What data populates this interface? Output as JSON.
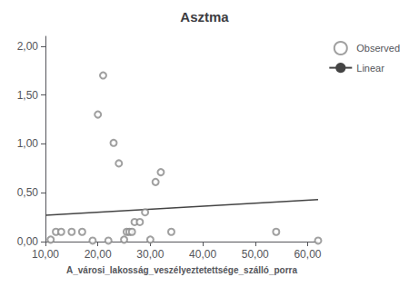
{
  "chart_data": {
    "type": "scatter",
    "title": "Asztma",
    "xlabel": "A_városi_lakosság_veszélyeztetettsége_szálló_porra",
    "xlim": [
      10,
      62
    ],
    "ylim": [
      0,
      2.1
    ],
    "xticks": [
      {
        "value": 10.0,
        "label": "10,00"
      },
      {
        "value": 20.0,
        "label": "20,00"
      },
      {
        "value": 30.0,
        "label": "30,00"
      },
      {
        "value": 40.0,
        "label": "40,00"
      },
      {
        "value": 50.0,
        "label": "50,00"
      },
      {
        "value": 60.0,
        "label": "60,00"
      }
    ],
    "yticks": [
      {
        "value": 0.0,
        "label": "0,00"
      },
      {
        "value": 0.5,
        "label": "0,50"
      },
      {
        "value": 1.0,
        "label": "1,00"
      },
      {
        "value": 1.5,
        "label": "1,50"
      },
      {
        "value": 2.0,
        "label": "2,00"
      }
    ],
    "grid": false,
    "legend": "right",
    "series": [
      {
        "name": "Observed",
        "type": "scatter",
        "marker": "emptyCircle",
        "color": "#888888",
        "x": [
          11,
          12,
          13,
          15,
          17,
          19,
          20,
          21,
          22,
          23,
          24,
          25,
          25.5,
          26,
          26.5,
          27,
          28,
          29,
          30,
          31,
          32,
          34,
          54,
          62
        ],
        "values": [
          0.02,
          0.1,
          0.1,
          0.1,
          0.1,
          0.01,
          1.3,
          1.7,
          0.01,
          1.01,
          0.8,
          0.02,
          0.1,
          0.1,
          0.1,
          0.2,
          0.2,
          0.3,
          0.02,
          0.61,
          0.71,
          0.1,
          0.1,
          0.01
        ]
      },
      {
        "name": "Linear",
        "type": "line",
        "line_style": "solid",
        "color": "#444444",
        "x": [
          10,
          62
        ],
        "values": [
          0.27,
          0.43
        ]
      }
    ]
  }
}
